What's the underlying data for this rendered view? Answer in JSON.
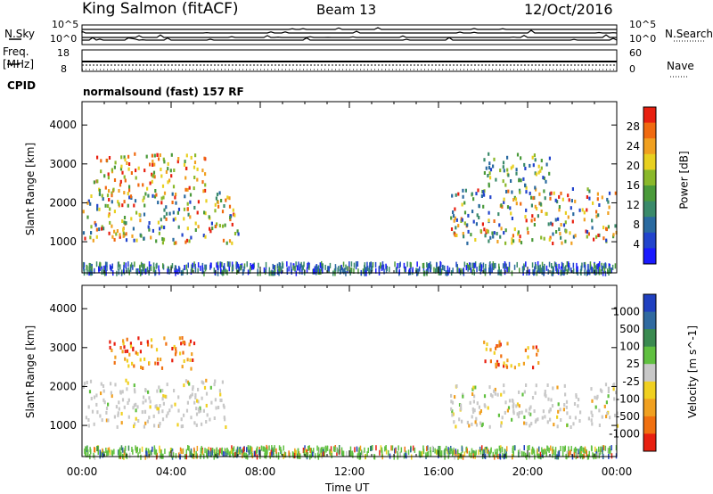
{
  "header": {
    "station": "King Salmon (fitACF)",
    "beam": "Beam 13",
    "date": "12/Oct/2016"
  },
  "top_panels": {
    "nsky_label": "N.Sky",
    "nsearch_label": "N.Search",
    "noise_ticks": [
      "10^5",
      "10^0"
    ],
    "noise_ticks_right": [
      "10^5",
      "10^0"
    ],
    "freq_label": "Freq.",
    "freq_unit": "[MHz]",
    "freq_ticks": [
      "18",
      "8"
    ],
    "nave_label": "Nave",
    "nave_ticks": [
      "60",
      "0"
    ],
    "cpid_label": "CPID",
    "cpid_text": "normalsound (fast) 157 RF"
  },
  "chart_data": [
    {
      "type": "heatmap",
      "title": "",
      "xlabel": "",
      "ylabel": "Slant Range [km]",
      "xlim": [
        "00:00",
        "00:00"
      ],
      "ylim": [
        200,
        4600
      ],
      "x_tick_labels": [],
      "y_ticks": [
        1000,
        2000,
        3000,
        4000
      ],
      "colorbar": {
        "label": "Power [dB]",
        "ticks": [
          4,
          8,
          12,
          16,
          20,
          24,
          28
        ],
        "colors": [
          "#1a1aff",
          "#2244cc",
          "#2a6aa0",
          "#3a8a6a",
          "#4a9a3a",
          "#8ab82a",
          "#e8d020",
          "#f0a020",
          "#f06a10",
          "#e82010"
        ]
      },
      "regions": [
        {
          "t_start": 0.0,
          "t_end": 7.0,
          "range_low": 1000,
          "range_high": 2300,
          "level": "mid-high"
        },
        {
          "t_start": 0.5,
          "t_end": 5.5,
          "range_low": 2300,
          "range_high": 3300,
          "level": "high"
        },
        {
          "t_start": 16.5,
          "t_end": 24.0,
          "range_low": 1000,
          "range_high": 2400,
          "level": "mid-high"
        },
        {
          "t_start": 18.0,
          "t_end": 21.0,
          "range_low": 2400,
          "range_high": 3300,
          "level": "mid"
        }
      ],
      "grid": false
    },
    {
      "type": "heatmap",
      "title": "",
      "xlabel": "Time UT",
      "ylabel": "Slant Range [km]",
      "xlim": [
        "00:00",
        "00:00"
      ],
      "ylim": [
        200,
        4600
      ],
      "x_tick_labels": [
        "00:00",
        "04:00",
        "08:00",
        "12:00",
        "16:00",
        "20:00",
        "00:00"
      ],
      "y_ticks": [
        1000,
        2000,
        3000,
        4000
      ],
      "colorbar": {
        "label": "Velocity [m s^-1]",
        "ticks": [
          1000,
          500,
          100,
          25,
          -25,
          -100,
          -500,
          -1000
        ],
        "colors": [
          "#2040c0",
          "#306aa0",
          "#3a8a50",
          "#60c040",
          "#c8c8c8",
          "#f0d020",
          "#f0a020",
          "#f07010",
          "#e82010"
        ]
      },
      "regions": [
        {
          "t_start": 0.0,
          "t_end": 6.5,
          "range_low": 1000,
          "range_high": 2200,
          "level": "near-zero"
        },
        {
          "t_start": 1.0,
          "t_end": 5.0,
          "range_low": 2500,
          "range_high": 3300,
          "level": "negative"
        },
        {
          "t_start": 16.5,
          "t_end": 24.0,
          "range_low": 1000,
          "range_high": 2100,
          "level": "near-zero"
        },
        {
          "t_start": 18.0,
          "t_end": 20.5,
          "range_low": 2500,
          "range_high": 3200,
          "level": "negative"
        }
      ],
      "grid": false
    }
  ]
}
